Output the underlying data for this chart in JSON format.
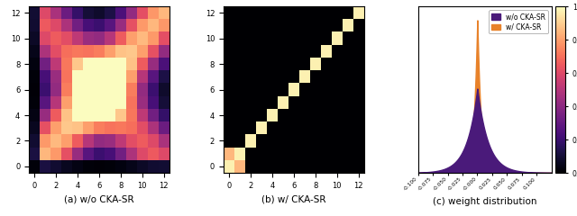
{
  "n": 13,
  "xlabel1": "(a) w/o CKA-SR",
  "xlabel2": "(b) w/ CKA-SR",
  "xlabel3": "(c) weight distribution",
  "legend1": "w/o CKA-SR",
  "legend2": "w/ CKA-SR",
  "color1": "#4a1a7a",
  "color2": "#E8822A",
  "dist1_scale": 0.018,
  "dist2_scale": 0.006,
  "dist_peak1": 0.43,
  "dist_peak2": 0.78,
  "figsize": [
    6.4,
    2.4
  ],
  "dpi": 100
}
